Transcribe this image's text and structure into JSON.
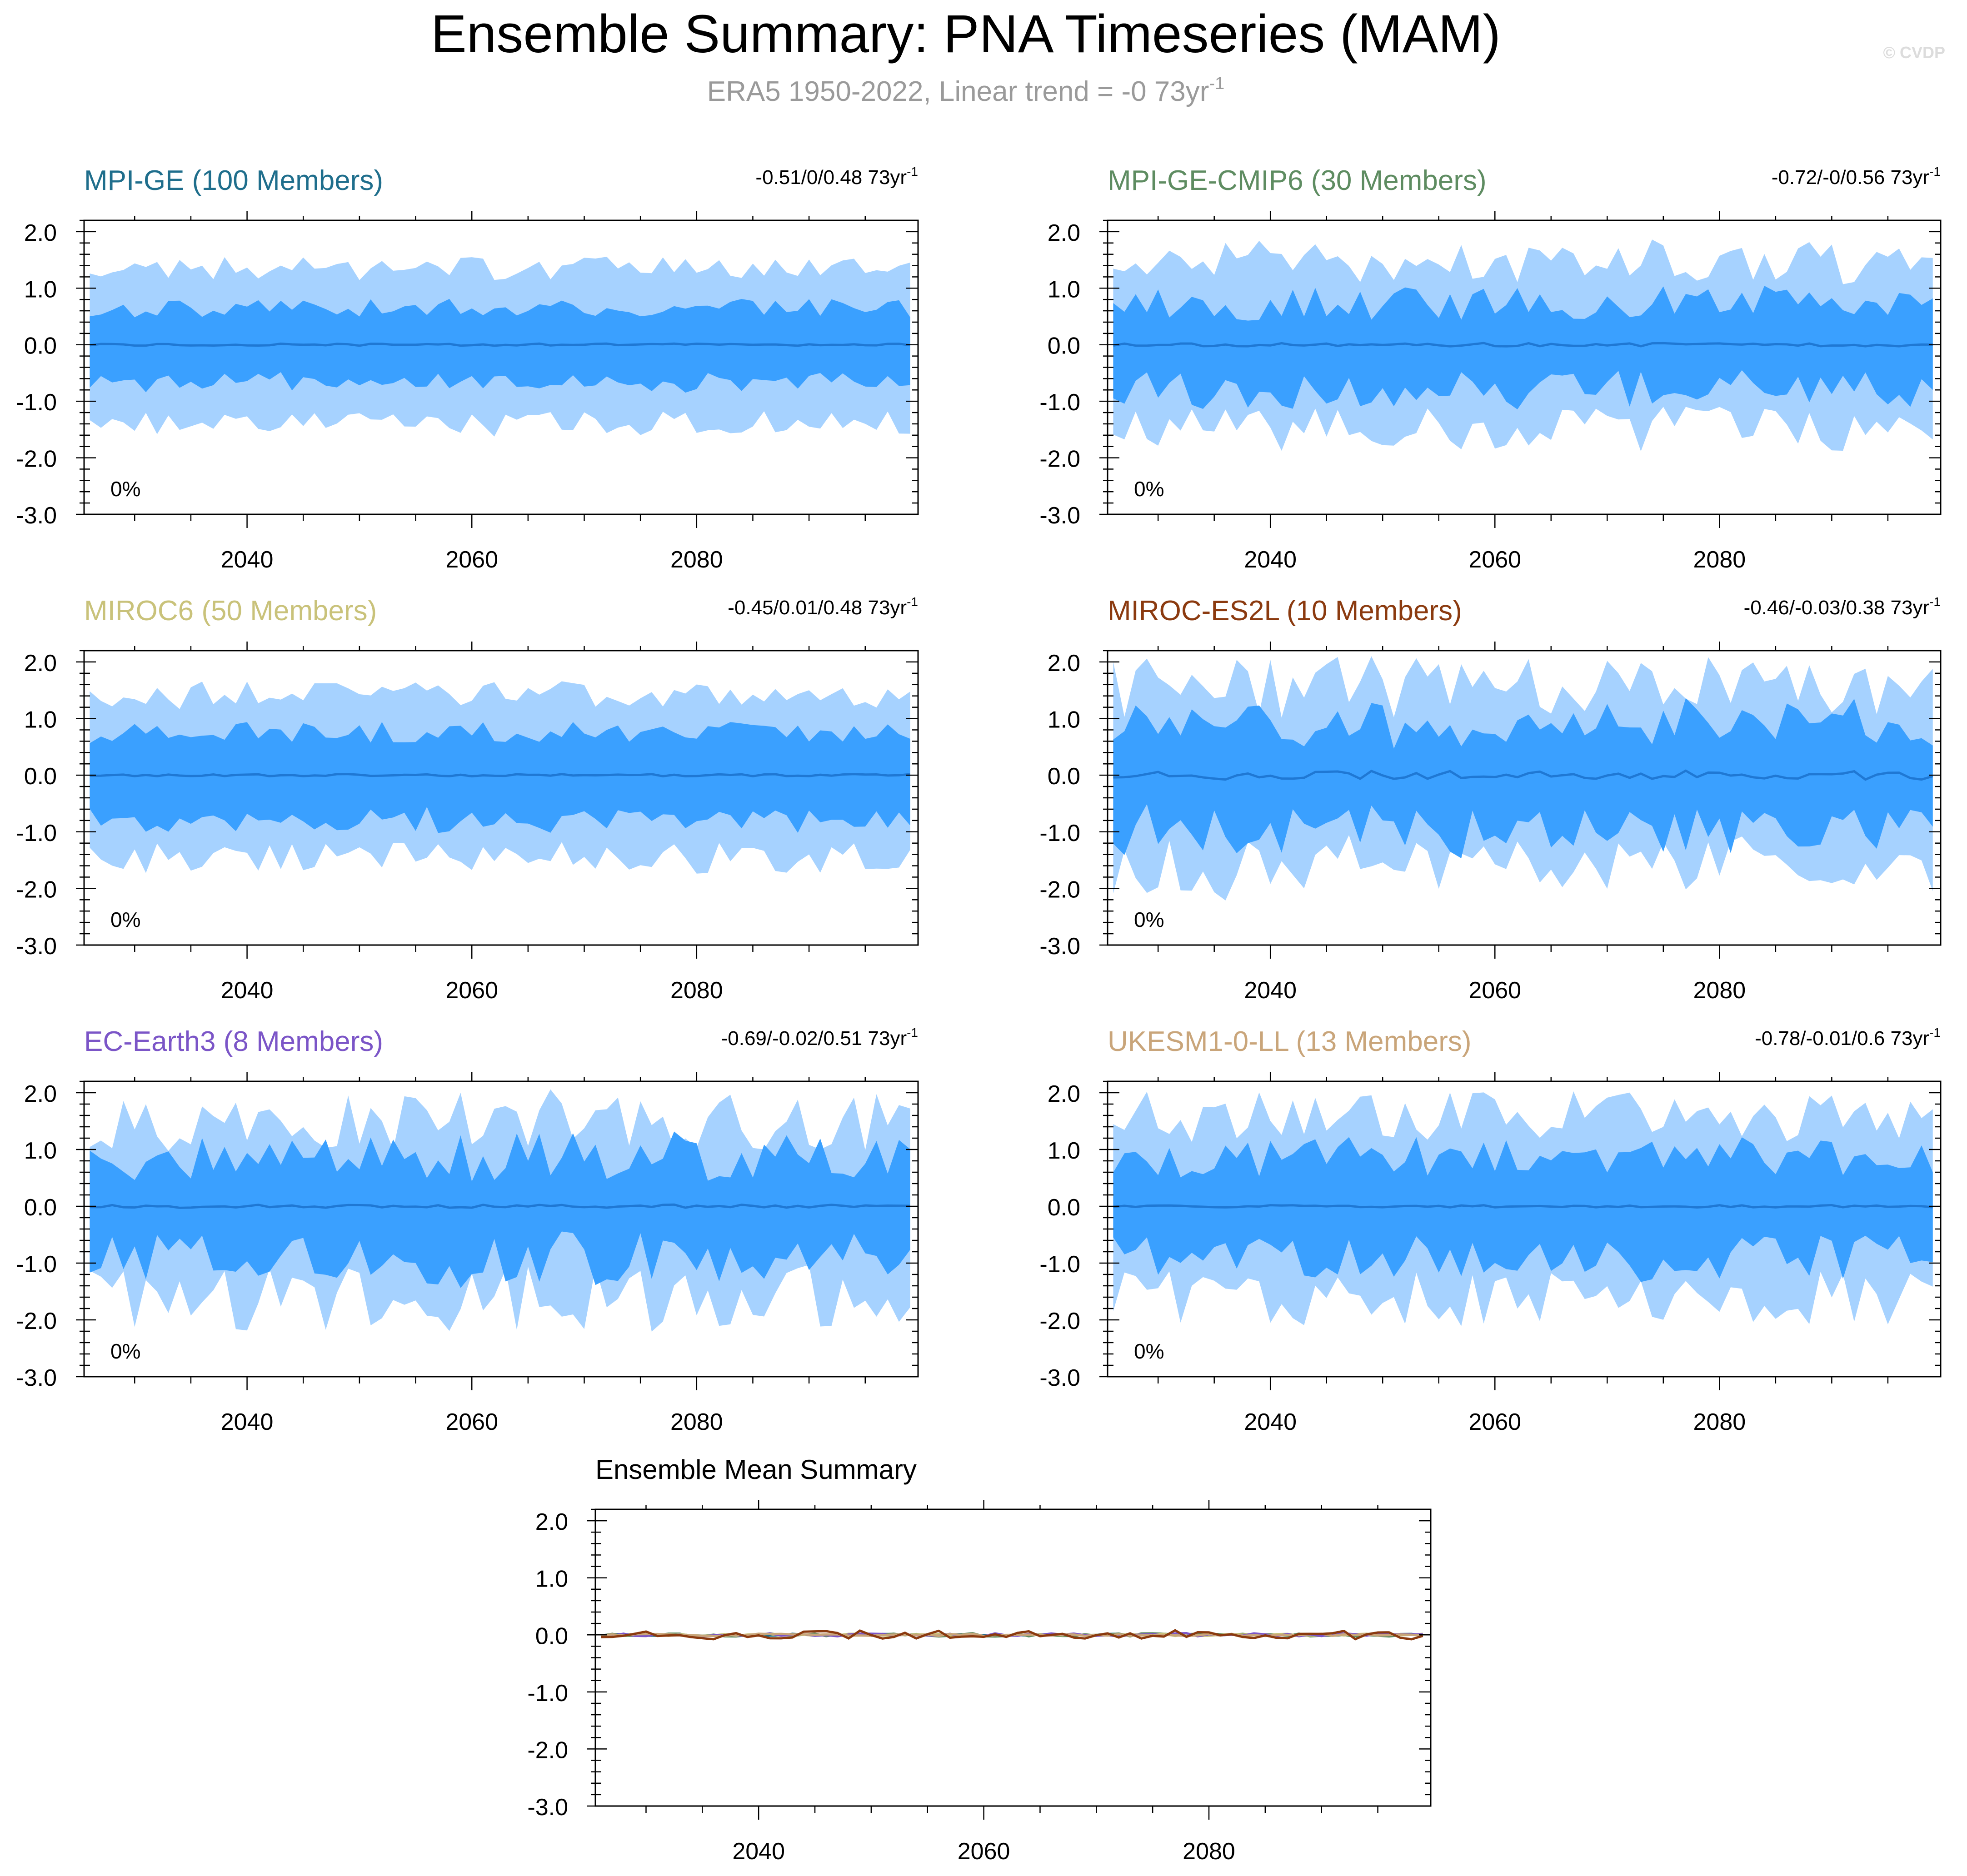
{
  "figure": {
    "title": "Ensemble Summary: PNA Timeseries (MAM)",
    "subtitle": "ERA5 1950-2022, Linear trend = -0 73yr",
    "subtitle_sup": "-1",
    "watermark": "© CVDP"
  },
  "colors": {
    "outer_band": "#a6d2ff",
    "inner_band": "#3aa0ff",
    "mean_line": "#1f78d4",
    "axis": "#000000"
  },
  "chart_data": [
    {
      "type": "area",
      "id": "mpi-ge",
      "title": "MPI-GE (100 Members)",
      "title_color": "#1f6e8c",
      "trend_label": "-0.51/0/0.48 73yr",
      "trend_sup": "-1",
      "pct_label": "0%",
      "x_range": [
        2026,
        2099
      ],
      "xlim": [
        2025.5,
        2099.7
      ],
      "ylim": [
        -3.0,
        2.2
      ],
      "yticks": [
        2.0,
        1.0,
        0.0,
        -1.0,
        -2.0,
        -3.0
      ],
      "ytick_labels": [
        "2.0",
        "1.0",
        "0.0",
        "-1.0",
        "-2.0",
        "-3.0"
      ],
      "xticks": [
        2040,
        2060,
        2080
      ],
      "xtick_labels": [
        "2040",
        "2060",
        "2080"
      ],
      "amp_outer": 1.3,
      "amp_inner": 0.6,
      "var": 0.2,
      "mean_var": 0.02,
      "seed": 11
    },
    {
      "type": "area",
      "id": "mpi-ge-cmip6",
      "title": "MPI-GE-CMIP6 (30 Members)",
      "title_color": "#5e8c61",
      "trend_label": "-0.72/-0/0.56 73yr",
      "trend_sup": "-1",
      "pct_label": "0%",
      "x_range": [
        2026,
        2099
      ],
      "xlim": [
        2025.5,
        2099.7
      ],
      "ylim": [
        -3.0,
        2.2
      ],
      "yticks": [
        2.0,
        1.0,
        0.0,
        -1.0,
        -2.0,
        -3.0
      ],
      "ytick_labels": [
        "2.0",
        "1.0",
        "0.0",
        "-1.0",
        "-2.0",
        "-3.0"
      ],
      "xticks": [
        2040,
        2060,
        2080
      ],
      "xtick_labels": [
        "2040",
        "2060",
        "2080"
      ],
      "amp_outer": 1.35,
      "amp_inner": 0.65,
      "var": 0.38,
      "mean_var": 0.03,
      "seed": 23
    },
    {
      "type": "area",
      "id": "miroc6",
      "title": "MIROC6 (50 Members)",
      "title_color": "#c9c27a",
      "trend_label": "-0.45/0.01/0.48 73yr",
      "trend_sup": "-1",
      "pct_label": "0%",
      "x_range": [
        2026,
        2099
      ],
      "xlim": [
        2025.5,
        2099.7
      ],
      "ylim": [
        -3.0,
        2.2
      ],
      "yticks": [
        2.0,
        1.0,
        0.0,
        -1.0,
        -2.0,
        -3.0
      ],
      "ytick_labels": [
        "2.0",
        "1.0",
        "0.0",
        "-1.0",
        "-2.0",
        "-3.0"
      ],
      "xticks": [
        2040,
        2060,
        2080
      ],
      "xtick_labels": [
        "2040",
        "2060",
        "2080"
      ],
      "amp_outer": 1.35,
      "amp_inner": 0.7,
      "var": 0.25,
      "mean_var": 0.02,
      "seed": 37
    },
    {
      "type": "area",
      "id": "miroc-es2l",
      "title": "MIROC-ES2L (10 Members)",
      "title_color": "#8b3a0f",
      "trend_label": "-0.46/-0.03/0.38 73yr",
      "trend_sup": "-1",
      "pct_label": "0%",
      "x_range": [
        2026,
        2099
      ],
      "xlim": [
        2025.5,
        2099.7
      ],
      "ylim": [
        -3.0,
        2.2
      ],
      "yticks": [
        2.0,
        1.0,
        0.0,
        -1.0,
        -2.0,
        -3.0
      ],
      "ytick_labels": [
        "2.0",
        "1.0",
        "0.0",
        "-1.0",
        "-2.0",
        "-3.0"
      ],
      "xticks": [
        2040,
        2060,
        2080
      ],
      "xtick_labels": [
        "2040",
        "2060",
        "2080"
      ],
      "amp_outer": 1.4,
      "amp_inner": 0.8,
      "var": 0.5,
      "mean_var": 0.08,
      "seed": 41
    },
    {
      "type": "area",
      "id": "ec-earth3",
      "title": "EC-Earth3 (8 Members)",
      "title_color": "#7b55c7",
      "trend_label": "-0.69/-0.02/0.51 73yr",
      "trend_sup": "-1",
      "pct_label": "0%",
      "x_range": [
        2026,
        2099
      ],
      "xlim": [
        2025.5,
        2099.7
      ],
      "ylim": [
        -3.0,
        2.2
      ],
      "yticks": [
        2.0,
        1.0,
        0.0,
        -1.0,
        -2.0,
        -3.0
      ],
      "ytick_labels": [
        "2.0",
        "1.0",
        "0.0",
        "-1.0",
        "-2.0",
        "-3.0"
      ],
      "xticks": [
        2040,
        2060,
        2080
      ],
      "xtick_labels": [
        "2040",
        "2060",
        "2080"
      ],
      "amp_outer": 1.35,
      "amp_inner": 0.75,
      "var": 0.55,
      "mean_var": 0.03,
      "seed": 53
    },
    {
      "type": "area",
      "id": "ukesm1-0-ll",
      "title": "UKESM1-0-LL (13 Members)",
      "title_color": "#c9a57a",
      "trend_label": "-0.78/-0.01/0.6 73yr",
      "trend_sup": "-1",
      "pct_label": "0%",
      "x_range": [
        2026,
        2099
      ],
      "xlim": [
        2025.5,
        2099.7
      ],
      "ylim": [
        -3.0,
        2.2
      ],
      "yticks": [
        2.0,
        1.0,
        0.0,
        -1.0,
        -2.0,
        -3.0
      ],
      "ytick_labels": [
        "2.0",
        "1.0",
        "0.0",
        "-1.0",
        "-2.0",
        "-3.0"
      ],
      "xticks": [
        2040,
        2060,
        2080
      ],
      "xtick_labels": [
        "2040",
        "2060",
        "2080"
      ],
      "amp_outer": 1.45,
      "amp_inner": 0.75,
      "var": 0.45,
      "mean_var": 0.02,
      "seed": 67
    },
    {
      "type": "line",
      "id": "ensemble-mean",
      "title": "Ensemble Mean Summary",
      "title_color": "#000000",
      "x_range": [
        2026,
        2099
      ],
      "xlim": [
        2025.5,
        2099.7
      ],
      "ylim": [
        -3.0,
        2.2
      ],
      "yticks": [
        2.0,
        1.0,
        0.0,
        -1.0,
        -2.0,
        -3.0
      ],
      "ytick_labels": [
        "2.0",
        "1.0",
        "0.0",
        "-1.0",
        "-2.0",
        "-3.0"
      ],
      "xticks": [
        2040,
        2060,
        2080
      ],
      "xtick_labels": [
        "2040",
        "2060",
        "2080"
      ],
      "series": [
        {
          "name": "MPI-GE",
          "color": "#1f6e8c",
          "var": 0.02,
          "seed": 11
        },
        {
          "name": "MPI-GE-CMIP6",
          "color": "#5e8c61",
          "var": 0.03,
          "seed": 23
        },
        {
          "name": "MIROC6",
          "color": "#c9c27a",
          "var": 0.02,
          "seed": 37
        },
        {
          "name": "EC-Earth3",
          "color": "#7b55c7",
          "var": 0.03,
          "seed": 53
        },
        {
          "name": "UKESM1-0-LL",
          "color": "#c9a57a",
          "var": 0.02,
          "seed": 67
        },
        {
          "name": "MIROC-ES2L",
          "color": "#8b3a0f",
          "var": 0.08,
          "seed": 41
        }
      ]
    }
  ]
}
